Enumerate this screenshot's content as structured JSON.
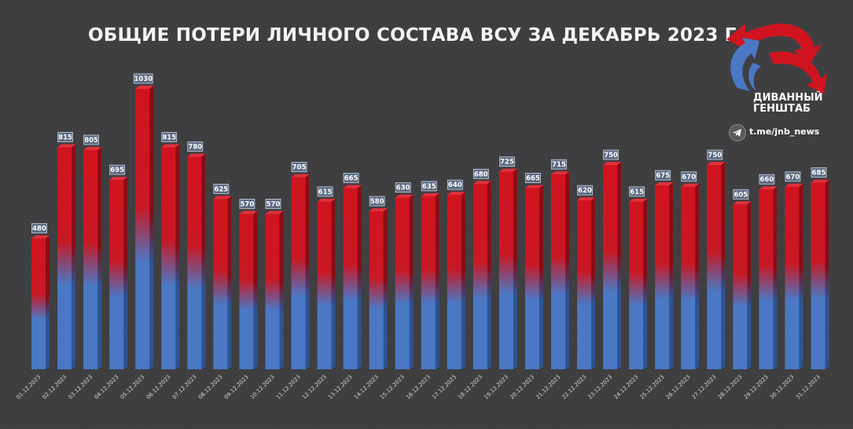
{
  "title": "ОБЩИЕ ПОТЕРИ ЛИЧНОГО СОСТАВА ВСУ ЗА ДЕКАБРЬ 2023 Г.",
  "logo": {
    "line1": "ДИВАННЫЙ",
    "line2": "ГЕНШТАБ",
    "icon": "arrows-logo-icon"
  },
  "channel": {
    "icon": "telegram-icon",
    "link": "t.me/jnb_news"
  },
  "colors": {
    "top": "#d0141f",
    "bottom": "#4a78c4",
    "background": "#3e3e40"
  },
  "chart_data": {
    "type": "bar",
    "title": "ОБЩИЕ ПОТЕРИ ЛИЧНОГО СОСТАВА ВСУ ЗА ДЕКАБРЬ 2023 Г.",
    "xlabel": "",
    "ylabel": "",
    "grid": false,
    "categories": [
      "01.12.2023",
      "02.12.2023",
      "03.12.2023",
      "04.12.2023",
      "05.12.2023",
      "06.12.2023",
      "07.12.2023",
      "08.12.2023",
      "09.12.2023",
      "10.12.2023",
      "11.12.2023",
      "12.12.2023",
      "13.12.2023",
      "14.12.2023",
      "15.12.2023",
      "16.12.2023",
      "17.12.2023",
      "18.12.2023",
      "19.12.2023",
      "20.12.2023",
      "21.12.2023",
      "22.12.2023",
      "23.12.2023",
      "24.12.2023",
      "25.12.2023",
      "26.12.2023",
      "27.12.2023",
      "28.12.2023",
      "29.12.2023",
      "30.12.2023",
      "31.12.2023"
    ],
    "values": [
      480,
      815,
      805,
      695,
      1030,
      815,
      780,
      625,
      570,
      570,
      705,
      615,
      665,
      580,
      630,
      635,
      640,
      680,
      725,
      665,
      715,
      620,
      750,
      615,
      675,
      670,
      750,
      605,
      660,
      670,
      685
    ],
    "value_labels": [
      "480",
      "815",
      "805",
      "695",
      "1030",
      "815",
      "780",
      "625",
      "570",
      "570",
      "705",
      "615",
      "665",
      "580",
      "630",
      "635",
      "640",
      "680",
      "725",
      "665",
      "715",
      "620",
      "750",
      "615",
      "675",
      "670",
      "750",
      "605",
      "660",
      "670",
      "685"
    ]
  }
}
